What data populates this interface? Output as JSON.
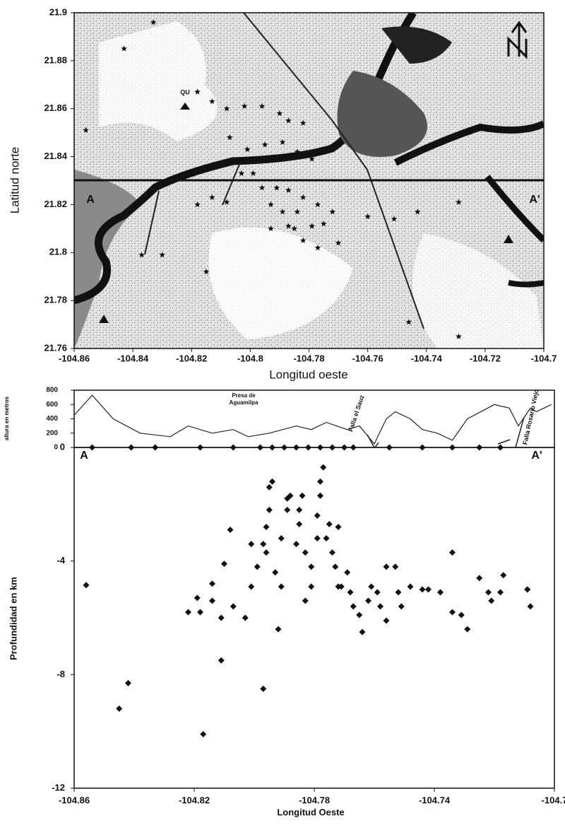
{
  "chart_data": [
    {
      "type": "scatter",
      "marker": "star",
      "color": "#111111",
      "xlabel": "Longitud oeste",
      "ylabel": "Latitud norte",
      "annotations": [
        "A",
        "A'",
        "QU"
      ],
      "xlim": [
        -104.86,
        -104.7
      ],
      "ylim": [
        21.76,
        21.9
      ],
      "xticks": [
        -104.86,
        -104.84,
        -104.82,
        -104.8,
        -104.78,
        -104.76,
        -104.74,
        -104.72,
        -104.7
      ],
      "yticks": [
        21.76,
        21.78,
        21.8,
        21.82,
        21.84,
        21.86,
        21.88,
        21.9
      ],
      "x": [
        -104.843,
        -104.833,
        -104.856,
        -104.818,
        -104.813,
        -104.808,
        -104.802,
        -104.796,
        -104.79,
        -104.787,
        -104.782,
        -104.807,
        -104.801,
        -104.795,
        -104.789,
        -104.784,
        -104.779,
        -104.796,
        -104.791,
        -104.787,
        -104.782,
        -104.777,
        -104.772,
        -104.784,
        -104.779,
        -104.775,
        -104.787,
        -104.793,
        -104.789,
        -104.793,
        -104.785,
        -104.782,
        -104.777,
        -104.77,
        -104.76,
        -104.751,
        -104.743,
        -104.729,
        -104.813,
        -104.818,
        -104.808,
        -104.815,
        -104.837,
        -104.83,
        -104.803,
        -104.799,
        -104.729,
        -104.746
      ],
      "values": [
        21.885,
        21.896,
        21.851,
        21.867,
        21.863,
        21.86,
        21.861,
        21.861,
        21.858,
        21.855,
        21.854,
        21.848,
        21.843,
        21.845,
        21.846,
        21.842,
        21.839,
        21.827,
        21.827,
        21.826,
        21.823,
        21.82,
        21.817,
        21.817,
        21.811,
        21.812,
        21.811,
        21.82,
        21.817,
        21.81,
        21.81,
        21.805,
        21.802,
        21.804,
        21.815,
        21.814,
        21.817,
        21.821,
        21.823,
        21.82,
        21.821,
        21.792,
        21.799,
        21.799,
        21.833,
        21.833,
        21.765,
        21.771
      ]
    },
    {
      "type": "line",
      "color": "#222222",
      "ylabel": "altura en metros",
      "annotations": [
        "Presa de",
        "Aguamilpa",
        "Falla el Sauz",
        "Falla Rosario Viejo"
      ],
      "xlim": [
        -104.86,
        -104.7
      ],
      "ylim": [
        0,
        800
      ],
      "yticks": [
        0,
        200,
        400,
        600,
        800
      ],
      "x": [
        -104.86,
        -104.854,
        -104.847,
        -104.838,
        -104.828,
        -104.822,
        -104.814,
        -104.807,
        -104.802,
        -104.795,
        -104.786,
        -104.781,
        -104.776,
        -104.769,
        -104.765,
        -104.76,
        -104.756,
        -104.753,
        -104.748,
        -104.744,
        -104.739,
        -104.734,
        -104.729,
        -104.72,
        -104.715,
        -104.712,
        -104.708,
        -104.706,
        -104.701
      ],
      "values": [
        450,
        730,
        400,
        200,
        150,
        300,
        200,
        250,
        150,
        200,
        300,
        250,
        350,
        250,
        300,
        50,
        400,
        500,
        400,
        250,
        200,
        100,
        400,
        600,
        550,
        300,
        550,
        500,
        600
      ]
    },
    {
      "type": "scatter",
      "marker": "diamond",
      "color": "#111111",
      "xlabel": "Longitud Oeste",
      "ylabel": "Profundidad en km",
      "annotations": [
        "A",
        "A'"
      ],
      "xlim": [
        -104.86,
        -104.7
      ],
      "ylim": [
        -12,
        0
      ],
      "xticks": [
        -104.86,
        -104.82,
        -104.78,
        -104.74,
        -104.7
      ],
      "yticks": [
        -12,
        -8,
        -4,
        0
      ],
      "x": [
        -104.856,
        -104.845,
        -104.842,
        -104.817,
        -104.811,
        -104.797,
        -104.822,
        -104.819,
        -104.818,
        -104.814,
        -104.814,
        -104.811,
        -104.807,
        -104.803,
        -104.81,
        -104.808,
        -104.801,
        -104.801,
        -104.799,
        -104.797,
        -104.796,
        -104.795,
        -104.795,
        -104.794,
        -104.796,
        -104.793,
        -104.792,
        -104.791,
        -104.791,
        -104.789,
        -104.789,
        -104.788,
        -104.786,
        -104.785,
        -104.785,
        -104.784,
        -104.783,
        -104.783,
        -104.781,
        -104.781,
        -104.779,
        -104.779,
        -104.778,
        -104.778,
        -104.777,
        -104.776,
        -104.775,
        -104.774,
        -104.773,
        -104.772,
        -104.772,
        -104.771,
        -104.769,
        -104.768,
        -104.767,
        -104.765,
        -104.764,
        -104.762,
        -104.761,
        -104.759,
        -104.758,
        -104.756,
        -104.756,
        -104.753,
        -104.752,
        -104.751,
        -104.748,
        -104.744,
        -104.742,
        -104.738,
        -104.734,
        -104.734,
        -104.731,
        -104.729,
        -104.725,
        -104.722,
        -104.721,
        -104.718,
        -104.717,
        -104.709,
        -104.709,
        -104.708,
        -104.854,
        -104.841,
        -104.833,
        -104.818,
        -104.807,
        -104.798,
        -104.794,
        -104.79,
        -104.786,
        -104.782,
        -104.778,
        -104.774,
        -104.77,
        -104.767,
        -104.755,
        -104.744,
        -104.734,
        -104.725,
        -104.718
      ],
      "values": [
        -4.85,
        -9.2,
        -8.3,
        -10.1,
        -7.5,
        -8.5,
        -5.8,
        -5.3,
        -5.8,
        -5.4,
        -4.8,
        -6.0,
        -5.6,
        -6.0,
        -4.1,
        -2.9,
        -4.9,
        -3.4,
        -4.2,
        -3.4,
        -2.8,
        -2.2,
        -1.4,
        -1.2,
        -3.7,
        -4.4,
        -6.4,
        -4.9,
        -3.2,
        -2.2,
        -1.8,
        -1.7,
        -3.4,
        -2.7,
        -2.2,
        -1.7,
        -5.4,
        -3.7,
        -4.2,
        -4.9,
        -3.2,
        -2.4,
        -1.7,
        -1.2,
        -0.7,
        -3.2,
        -2.7,
        -3.7,
        -4.2,
        -4.9,
        -2.8,
        -4.9,
        -4.4,
        -5.1,
        -5.6,
        -5.9,
        -6.5,
        -5.4,
        -4.9,
        -5.1,
        -5.6,
        -6.1,
        -4.2,
        -4.2,
        -5.1,
        -5.6,
        -4.9,
        -5.0,
        -5.0,
        -5.1,
        -3.7,
        -5.8,
        -5.9,
        -6.4,
        -4.6,
        -5.1,
        -5.4,
        -5.1,
        -4.5,
        -5.0,
        -5.0,
        -5.6,
        0,
        0,
        0,
        0,
        0,
        0,
        0,
        0,
        0,
        0,
        0,
        0,
        0,
        0,
        0,
        0,
        0,
        0,
        0
      ]
    }
  ]
}
